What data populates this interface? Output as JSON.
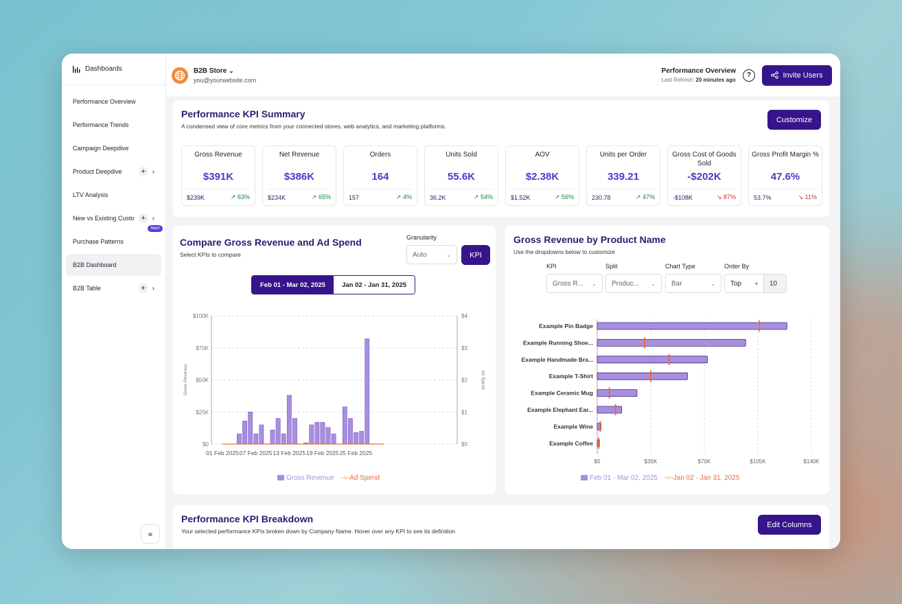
{
  "sidebar": {
    "header": "Dashboards",
    "items": [
      {
        "label": "Performance Overview"
      },
      {
        "label": "Performance Trends"
      },
      {
        "label": "Campaign Deepdive"
      },
      {
        "label": "Product Deepdive"
      },
      {
        "label": "LTV Analysis"
      },
      {
        "label": "New vs Existing Custo"
      },
      {
        "label": "Purchase Patterns",
        "badge": "New!"
      },
      {
        "label": "B2B Dashboard"
      },
      {
        "label": "B2B Table"
      }
    ],
    "collapse": "«"
  },
  "topbar": {
    "store_name": "B2B Store",
    "store_email": "you@yourwebsite.com",
    "page_title": "Performance Overview",
    "last_refresh_label": "Last Refresh:",
    "last_refresh_value": "20 minutes ago",
    "invite_label": "Invite Users"
  },
  "kpi_summary": {
    "title": "Performance KPI Summary",
    "subtitle": "A condensed view of core metrics from your connected stores, web analytics, and marketing platforms.",
    "customize_label": "Customize",
    "cards": [
      {
        "name": "Gross Revenue",
        "value": "$391K",
        "prev": "$239K",
        "change": "63%",
        "dir": "up"
      },
      {
        "name": "Net Revenue",
        "value": "$386K",
        "prev": "$234K",
        "change": "65%",
        "dir": "up"
      },
      {
        "name": "Orders",
        "value": "164",
        "prev": "157",
        "change": "4%",
        "dir": "up"
      },
      {
        "name": "Units Sold",
        "value": "55.6K",
        "prev": "36.2K",
        "change": "54%",
        "dir": "up"
      },
      {
        "name": "AOV",
        "value": "$2.38K",
        "prev": "$1.52K",
        "change": "56%",
        "dir": "up"
      },
      {
        "name": "Units per Order",
        "value": "339.21",
        "prev": "230.78",
        "change": "47%",
        "dir": "up"
      },
      {
        "name": "Gross Cost of Goods Sold",
        "value": "-$202K",
        "prev": "-$108K",
        "change": "87%",
        "dir": "down"
      },
      {
        "name": "Gross Profit Margin %",
        "value": "47.6%",
        "prev": "53.7%",
        "change": "11%",
        "dir": "down"
      }
    ]
  },
  "compare_card": {
    "title": "Compare Gross Revenue and Ad Spend",
    "subtitle": "Select KPIs to compare",
    "granularity_label": "Granularity",
    "granularity_value": "Auto",
    "kpi_button": "KPI",
    "range_current": "Feb 01 - Mar 02, 2025",
    "range_previous": "Jan 02 - Jan 31, 2025"
  },
  "product_card": {
    "title": "Gross Revenue by Product Name",
    "subtitle": "Use the dropdowns below to customize",
    "kpi_label": "KPI",
    "kpi_value": "Gross R...",
    "split_label": "Split",
    "split_value": "Produc...",
    "chart_type_label": "Chart Type",
    "chart_type_value": "Bar",
    "order_by_label": "Order By",
    "order_by_value": "Top",
    "order_by_count": "10"
  },
  "breakdown": {
    "title": "Performance KPI Breakdown",
    "subtitle": "Your selected performance KPIs broken down by Company Name. Hover over any KPI to see its definition",
    "edit_label": "Edit Columns"
  },
  "colors": {
    "brand": "#36148c",
    "bar": "#a98ee0",
    "bar_stroke": "#6b52b8",
    "ad_spend": "#f06a3a",
    "up": "#1a7f3c",
    "down": "#d42f3a"
  },
  "chart_data": [
    {
      "type": "bar",
      "ylabel": "Gross Revenue",
      "y2label": "Ad Spend",
      "ylim": [
        0,
        100000
      ],
      "y2lim": [
        0,
        4
      ],
      "yticks": [
        "$0",
        "$25K",
        "$50K",
        "$75K",
        "$100K"
      ],
      "y2ticks": [
        "$0",
        "$1",
        "$2",
        "$3",
        "$4"
      ],
      "xticks": [
        "01 Feb 2025",
        "07 Feb 2025",
        "13 Feb 2025",
        "19 Feb 2025",
        "25 Feb 2025"
      ],
      "grid": true,
      "legend_position": "bottom",
      "series": [
        {
          "name": "Gross Revenue",
          "values": [
            0,
            0,
            0,
            8000,
            18000,
            25000,
            8000,
            15000,
            0,
            11000,
            20000,
            8000,
            38000,
            20000,
            0,
            1000,
            15000,
            17000,
            17000,
            13000,
            8000,
            0,
            29000,
            20000,
            9000,
            10000,
            82000,
            0,
            0,
            0
          ]
        },
        {
          "name": "Ad Spend",
          "values": [
            0,
            0,
            0,
            0,
            0,
            0,
            0,
            0,
            0,
            0,
            0,
            0,
            0,
            0,
            0,
            0,
            0,
            0,
            0,
            0,
            0,
            0,
            0,
            0,
            0,
            0,
            0,
            0,
            0,
            0
          ]
        }
      ]
    },
    {
      "type": "bar",
      "orientation": "horizontal",
      "categories": [
        "Example Pin Badge",
        "Example Running Shoe...",
        "Example Handmade Bra...",
        "Example T-Shirt",
        "Example Ceramic Mug",
        "Example Elephant Ear...",
        "Example Wine",
        "Example Coffee"
      ],
      "xlim": [
        0,
        140000
      ],
      "xticks": [
        "$0",
        "$35K",
        "$70K",
        "$105K",
        "$140K"
      ],
      "grid": true,
      "legend_position": "bottom",
      "series": [
        {
          "name": "Feb 01 - Mar 02, 2025",
          "values": [
            124000,
            97000,
            72000,
            59000,
            26000,
            16000,
            2500,
            1500
          ]
        },
        {
          "name": "Jan 02 - Jan 31, 2025",
          "values": [
            106000,
            31000,
            47000,
            35000,
            8000,
            12000,
            2000,
            1000
          ]
        }
      ]
    }
  ]
}
